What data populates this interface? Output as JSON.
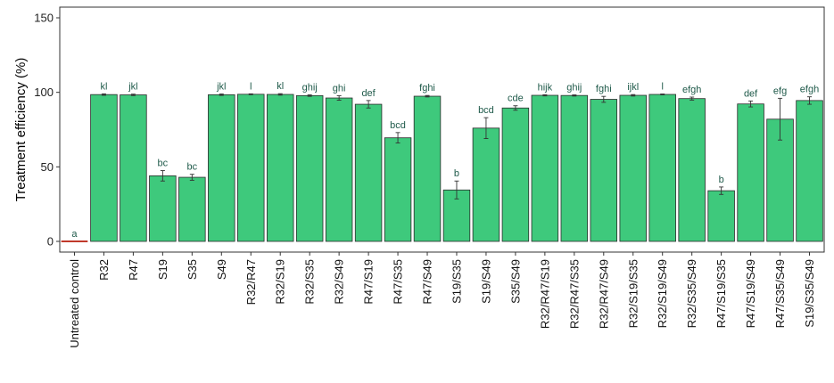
{
  "chart_data": {
    "type": "bar",
    "ylabel": "Treatment efficiency (%)",
    "xlabel": "",
    "ylim": [
      0,
      150
    ],
    "yticks": [
      0,
      50,
      100,
      150
    ],
    "grid": false,
    "bar_color": "#3ec97c",
    "control_color": "#c0392b",
    "letter_color": "#1f5a4a",
    "categories": [
      "Untreated control",
      "R32",
      "R47",
      "S19",
      "S35",
      "S49",
      "R32/R47",
      "R32/S19",
      "R32/S35",
      "R32/S49",
      "R47/S19",
      "R47/S35",
      "R47/S49",
      "S19/S35",
      "S19/S49",
      "S35/S49",
      "R32/R47/S19",
      "R32/R47/S35",
      "R32/R47/S49",
      "R32/S19/S35",
      "R32/S19/S49",
      "R32/S35/S49",
      "R47/S19/S35",
      "R47/S19/S49",
      "R47/S35/S49",
      "S19/S35/S49"
    ],
    "values": [
      0,
      98.5,
      98.3,
      44,
      43,
      98.4,
      98.7,
      98.6,
      97.8,
      96.2,
      92,
      69.5,
      97.4,
      34.5,
      76,
      89.5,
      98,
      97.9,
      95.3,
      98,
      98.6,
      95.8,
      34,
      92.2,
      82,
      94.5
    ],
    "errors": [
      0,
      0.5,
      0.5,
      3.5,
      2,
      0.5,
      0.3,
      0.5,
      0.5,
      1.5,
      2.5,
      3.5,
      0.5,
      6,
      7,
      1.5,
      0.4,
      0.4,
      2,
      0.5,
      0.3,
      1,
      2.5,
      2,
      14,
      2.5
    ],
    "letters": [
      "a",
      "kl",
      "jkl",
      "bc",
      "bc",
      "jkl",
      "l",
      "kl",
      "ghij",
      "ghi",
      "def",
      "bcd",
      "fghi",
      "b",
      "bcd",
      "cde",
      "hijk",
      "ghij",
      "fghi",
      "ijkl",
      "l",
      "efgh",
      "b",
      "def",
      "efg",
      "efgh"
    ]
  }
}
